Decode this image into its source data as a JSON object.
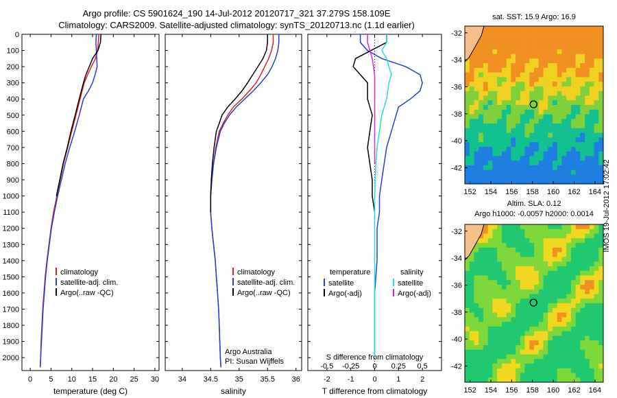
{
  "header": {
    "line1": "Argo profile: CS 5901624_190 14-Jul-2012 20120717_321 37.279S 158.109E",
    "line2": "Climatology: CARS2009. Satellite-adjusted climatology: synTS_20120713.nc (1.1d earlier)"
  },
  "colors": {
    "climatology": "#e02020",
    "satellite": "#1f3fe0",
    "argo": "#000000",
    "sat_salinity": "#22dde0",
    "argo_adj_salinity": "#e020e0"
  },
  "chart_data": [
    {
      "type": "line",
      "id": "temperature",
      "xlabel": "temperature (deg C)",
      "ylabel": "",
      "xlim": [
        -2,
        31
      ],
      "ylim": [
        2080,
        0
      ],
      "xticks": [
        0,
        5,
        10,
        15,
        20,
        25,
        30
      ],
      "yticks": [
        0,
        100,
        200,
        300,
        400,
        500,
        600,
        700,
        800,
        900,
        1000,
        1100,
        1200,
        1300,
        1400,
        1500,
        1600,
        1700,
        1800,
        1900,
        2000
      ],
      "legend": [
        "climatology",
        "satellite-adj. clim.",
        "Argo(..raw -QC)"
      ],
      "series": [
        {
          "name": "climatology",
          "color": "#e02020",
          "points": [
            [
              16.5,
              0
            ],
            [
              16.4,
              50
            ],
            [
              16.2,
              100
            ],
            [
              15.7,
              150
            ],
            [
              14.7,
              200
            ],
            [
              13.8,
              250
            ],
            [
              13.0,
              300
            ],
            [
              12.0,
              400
            ],
            [
              11.0,
              500
            ],
            [
              10.0,
              600
            ],
            [
              9.0,
              700
            ],
            [
              8.0,
              800
            ],
            [
              7.2,
              900
            ],
            [
              6.4,
              1000
            ],
            [
              5.6,
              1100
            ],
            [
              5.0,
              1200
            ],
            [
              4.5,
              1300
            ],
            [
              4.0,
              1400
            ],
            [
              3.6,
              1500
            ],
            [
              3.3,
              1600
            ],
            [
              3.0,
              1700
            ],
            [
              2.8,
              1800
            ],
            [
              2.6,
              1900
            ],
            [
              2.5,
              2000
            ],
            [
              2.4,
              2060
            ]
          ]
        },
        {
          "name": "satellite-adj. clim.",
          "color": "#1f3fe0",
          "points": [
            [
              15.9,
              0
            ],
            [
              15.8,
              50
            ],
            [
              15.9,
              100
            ],
            [
              16.0,
              150
            ],
            [
              16.1,
              200
            ],
            [
              15.6,
              250
            ],
            [
              15.0,
              300
            ],
            [
              14.0,
              350
            ],
            [
              12.8,
              400
            ],
            [
              11.8,
              500
            ],
            [
              10.7,
              600
            ],
            [
              9.5,
              700
            ],
            [
              8.4,
              800
            ],
            [
              7.5,
              900
            ],
            [
              6.6,
              1000
            ],
            [
              5.8,
              1100
            ],
            [
              5.1,
              1200
            ],
            [
              4.6,
              1300
            ],
            [
              4.1,
              1400
            ],
            [
              3.7,
              1500
            ],
            [
              3.4,
              1600
            ],
            [
              3.1,
              1700
            ],
            [
              2.9,
              1800
            ],
            [
              2.7,
              1900
            ],
            [
              2.5,
              2000
            ],
            [
              2.4,
              2060
            ]
          ]
        },
        {
          "name": "Argo(..raw -QC)",
          "color": "#000000",
          "points": [
            [
              17.0,
              0
            ],
            [
              16.9,
              50
            ],
            [
              16.3,
              100
            ],
            [
              15.0,
              150
            ],
            [
              14.2,
              200
            ],
            [
              13.4,
              250
            ],
            [
              12.8,
              300
            ],
            [
              11.8,
              400
            ],
            [
              10.8,
              500
            ],
            [
              9.8,
              600
            ],
            [
              8.9,
              700
            ],
            [
              7.9,
              800
            ],
            [
              7.1,
              900
            ],
            [
              6.3,
              1000
            ]
          ]
        }
      ]
    },
    {
      "type": "line",
      "id": "salinity",
      "xlabel": "salinity",
      "ylabel": "",
      "xlim": [
        33.7,
        36.1
      ],
      "ylim": [
        2080,
        0
      ],
      "xticks": [
        34,
        34.5,
        35,
        35.5,
        36
      ],
      "legend": [
        "climatology",
        "satellite-adj. clim.",
        "Argo(..raw -QC)"
      ],
      "annotation": [
        "Argo Australia",
        "PI: Susan Wijffels"
      ],
      "series": [
        {
          "name": "climatology",
          "color": "#e02020",
          "points": [
            [
              35.6,
              0
            ],
            [
              35.6,
              50
            ],
            [
              35.57,
              100
            ],
            [
              35.52,
              150
            ],
            [
              35.45,
              200
            ],
            [
              35.38,
              250
            ],
            [
              35.3,
              300
            ],
            [
              35.18,
              350
            ],
            [
              35.05,
              400
            ],
            [
              34.9,
              450
            ],
            [
              34.8,
              500
            ],
            [
              34.72,
              550
            ],
            [
              34.65,
              600
            ],
            [
              34.59,
              700
            ],
            [
              34.55,
              800
            ],
            [
              34.52,
              900
            ],
            [
              34.5,
              1000
            ],
            [
              34.5,
              1100
            ],
            [
              34.52,
              1200
            ],
            [
              34.55,
              1300
            ],
            [
              34.58,
              1400
            ],
            [
              34.6,
              1500
            ],
            [
              34.62,
              1600
            ],
            [
              34.64,
              1700
            ],
            [
              34.65,
              1800
            ],
            [
              34.66,
              1900
            ],
            [
              34.67,
              2000
            ],
            [
              34.68,
              2060
            ]
          ]
        },
        {
          "name": "satellite-adj. clim.",
          "color": "#1f3fe0",
          "points": [
            [
              35.7,
              0
            ],
            [
              35.7,
              50
            ],
            [
              35.68,
              100
            ],
            [
              35.64,
              150
            ],
            [
              35.58,
              200
            ],
            [
              35.5,
              250
            ],
            [
              35.38,
              300
            ],
            [
              35.25,
              350
            ],
            [
              35.1,
              400
            ],
            [
              34.95,
              450
            ],
            [
              34.83,
              500
            ],
            [
              34.74,
              550
            ],
            [
              34.67,
              600
            ],
            [
              34.6,
              700
            ],
            [
              34.55,
              800
            ],
            [
              34.52,
              900
            ],
            [
              34.5,
              1000
            ],
            [
              34.5,
              1100
            ],
            [
              34.52,
              1200
            ],
            [
              34.55,
              1300
            ],
            [
              34.58,
              1400
            ],
            [
              34.6,
              1500
            ],
            [
              34.62,
              1600
            ],
            [
              34.64,
              1700
            ],
            [
              34.65,
              1800
            ],
            [
              34.66,
              1900
            ],
            [
              34.67,
              2000
            ],
            [
              34.68,
              2060
            ]
          ]
        },
        {
          "name": "Argo(..raw -QC)",
          "color": "#000000",
          "points": [
            [
              35.5,
              0
            ],
            [
              35.5,
              50
            ],
            [
              35.48,
              100
            ],
            [
              35.42,
              150
            ],
            [
              35.33,
              200
            ],
            [
              35.24,
              250
            ],
            [
              35.15,
              300
            ],
            [
              35.05,
              350
            ],
            [
              34.93,
              400
            ],
            [
              34.8,
              450
            ],
            [
              34.7,
              500
            ],
            [
              34.65,
              550
            ],
            [
              34.6,
              600
            ],
            [
              34.56,
              700
            ],
            [
              34.53,
              800
            ],
            [
              34.51,
              900
            ],
            [
              34.5,
              1000
            ],
            [
              34.5,
              1100
            ]
          ]
        }
      ]
    },
    {
      "type": "line",
      "id": "differences",
      "xlabel": "T difference from climatology",
      "xlabel_top": "S difference from climatology",
      "ylabel": "",
      "xlim": [
        -2.8,
        2.8
      ],
      "ylim": [
        2080,
        0
      ],
      "xticks": [
        -2,
        -1,
        0,
        1,
        2
      ],
      "xticks_s": [
        -0.5,
        -0.25,
        0,
        0.25,
        0.5
      ],
      "legend_t_title": "temperature",
      "legend_t": [
        "satellite",
        "Argo(-adj)"
      ],
      "legend_s_title": "salinity",
      "legend_s": [
        "satellite",
        "Argo(-adj)"
      ],
      "series": [
        {
          "name": "satellite",
          "color": "#1f3fe0",
          "points": [
            [
              -0.6,
              0
            ],
            [
              -0.6,
              50
            ],
            [
              -0.3,
              100
            ],
            [
              0.3,
              150
            ],
            [
              1.3,
              200
            ],
            [
              1.9,
              250
            ],
            [
              2.0,
              300
            ],
            [
              1.9,
              350
            ],
            [
              1.5,
              400
            ],
            [
              1.0,
              450
            ],
            [
              0.9,
              500
            ],
            [
              0.7,
              600
            ],
            [
              0.5,
              700
            ],
            [
              0.4,
              800
            ],
            [
              0.3,
              900
            ],
            [
              0.2,
              1000
            ],
            [
              0.2,
              1100
            ],
            [
              0.1,
              1200
            ],
            [
              0.1,
              1400
            ],
            [
              0.0,
              1600
            ],
            [
              0.0,
              2000
            ]
          ]
        },
        {
          "name": "Argo(-adj)",
          "color": "#000000",
          "points": [
            [
              0.5,
              0
            ],
            [
              0.5,
              50
            ],
            [
              -0.8,
              150
            ],
            [
              -0.9,
              200
            ],
            [
              -0.6,
              250
            ],
            [
              -0.3,
              300
            ],
            [
              -0.3,
              400
            ],
            [
              -0.1,
              500
            ],
            [
              -0.2,
              600
            ],
            [
              -0.3,
              700
            ],
            [
              -0.2,
              800
            ],
            [
              -0.1,
              900
            ],
            [
              -0.1,
              1000
            ],
            [
              0.0,
              1100
            ]
          ]
        },
        {
          "name": "satellite",
          "color": "#22dde0",
          "points": [
            [
              0.5,
              0
            ],
            [
              0.5,
              50
            ],
            [
              0.3,
              100
            ],
            [
              0.5,
              150
            ],
            [
              0.6,
              200
            ],
            [
              0.7,
              250
            ],
            [
              0.6,
              300
            ],
            [
              0.5,
              400
            ],
            [
              0.3,
              500
            ],
            [
              0.2,
              600
            ],
            [
              0.1,
              700
            ],
            [
              0.05,
              800
            ],
            [
              0.0,
              1000
            ],
            [
              0.0,
              2000
            ]
          ]
        },
        {
          "name": "Argo(-adj)",
          "color": "#e020e0",
          "points": [
            [
              -0.3,
              0
            ],
            [
              -0.3,
              50
            ],
            [
              -0.2,
              100
            ],
            [
              -0.1,
              150
            ],
            [
              0.0,
              250
            ],
            [
              0.0,
              400
            ],
            [
              0.0,
              600
            ],
            [
              0.0,
              800
            ]
          ]
        }
      ]
    },
    {
      "type": "heatmap",
      "id": "sst-map",
      "title": "sat. SST: 15.9 Argo: 16.9",
      "xticks": [
        152,
        154,
        156,
        158,
        160,
        162,
        164
      ],
      "yticks": [
        -32,
        -34,
        -36,
        -38,
        -40,
        -42
      ],
      "xlim": [
        151.5,
        164.8
      ],
      "ylim": [
        -43.2,
        -31.5
      ],
      "marker": [
        158.1,
        -37.3
      ]
    },
    {
      "type": "heatmap",
      "id": "sla-map",
      "title": "Altim. SLA: 0.12",
      "subtitle": "Argo h1000: -0.0057 h2000: 0.0014",
      "xticks": [
        152,
        154,
        156,
        158,
        160,
        162,
        164
      ],
      "yticks": [
        -32,
        -34,
        -36,
        -38,
        -40,
        -42
      ],
      "xlim": [
        151.5,
        164.8
      ],
      "ylim": [
        -43.2,
        -31.5
      ],
      "marker": [
        158.1,
        -37.3
      ]
    }
  ],
  "footer_stamp": "IMOS 19-Jul-2012 17:02:42"
}
